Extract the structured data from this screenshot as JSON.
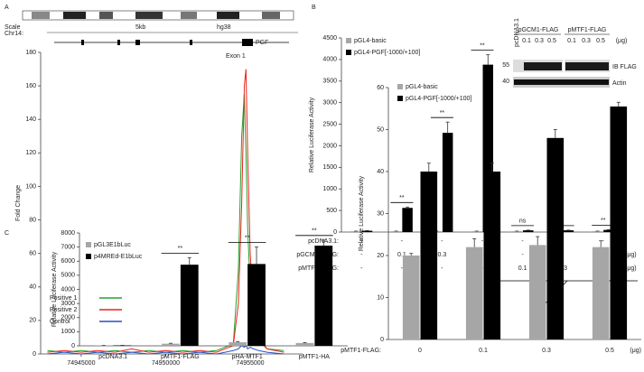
{
  "chart_data": [
    {
      "type": "line",
      "panel": "A",
      "ylabel": "Fold Change",
      "browser": {
        "scale": "Scale",
        "chrom": "Chr14:",
        "size": "5kb",
        "assembly": "hg38"
      },
      "gene": "PGF",
      "annotation": "Exon 1",
      "x": [
        74943000,
        74944000,
        74945000,
        74946000,
        74947000,
        74948000,
        74949000,
        74950000,
        74951000,
        74952000,
        74953000,
        74954000,
        74954300,
        74954500,
        74954650,
        74954750,
        74954850,
        74955000,
        74955200,
        74955500,
        74956000,
        74957000
      ],
      "series": [
        {
          "name": "Positive 1",
          "color": "#2ca02c",
          "values": [
            2,
            1,
            2,
            1,
            2,
            1,
            2,
            1,
            2,
            1,
            2,
            6,
            50,
            130,
            155,
            120,
            75,
            40,
            20,
            10,
            3,
            2
          ]
        },
        {
          "name": "Positive 2",
          "color": "#e8251c",
          "values": [
            1,
            2,
            1,
            2,
            1,
            3,
            1,
            2,
            1,
            2,
            1,
            5,
            30,
            90,
            160,
            170,
            120,
            60,
            25,
            8,
            3,
            1
          ]
        },
        {
          "name": "Control",
          "color": "#2a4fc4",
          "values": [
            0,
            1,
            0,
            1,
            0,
            1,
            0,
            1,
            0,
            1,
            0,
            2,
            3,
            5,
            4,
            5,
            3,
            4,
            3,
            2,
            1,
            0
          ]
        }
      ],
      "xlim": [
        74942600,
        74958100
      ],
      "xticks": [
        74945000,
        74950000,
        74955000
      ],
      "ylim": [
        0,
        180
      ],
      "yticks": [
        0,
        20,
        40,
        60,
        80,
        100,
        120,
        140,
        160,
        180
      ]
    },
    {
      "type": "bar",
      "panel": "B",
      "ylabel": "Relative Luciferase Activity",
      "series": [
        {
          "name": "pGL4-basic",
          "color": "#a6a6a6",
          "values": [
            20,
            20,
            20,
            20,
            20,
            20,
            20
          ],
          "errors": [
            2,
            2,
            2,
            2,
            2,
            2,
            2
          ]
        },
        {
          "name": "pGL4-PGF[-1000/+100]",
          "color": "#000000",
          "values": [
            30,
            560,
            2300,
            3880,
            40,
            40,
            50
          ],
          "errors": [
            5,
            20,
            250,
            230,
            5,
            5,
            5
          ]
        }
      ],
      "sig_labels": [
        null,
        "**",
        "**",
        "**",
        "ns",
        "*",
        "**"
      ],
      "rows": [
        {
          "label": "pcDNA3.1:",
          "values": [
            "+",
            "-",
            "-",
            "-",
            "-",
            "-",
            "-"
          ]
        },
        {
          "label": "pGCM1-FLAG:",
          "values": [
            "-",
            "0.1",
            "0.3",
            "0.5",
            "-",
            "-",
            "-"
          ],
          "unit": "(μg)"
        },
        {
          "label": "pMTF1-FLAG:",
          "values": [
            "-",
            "-",
            "-",
            "-",
            "0.1",
            "0.3",
            "0.5"
          ],
          "unit": "(μg)"
        }
      ],
      "inset": {
        "control": "pcDNA3.1",
        "groups": [
          "pGCM1-FLAG",
          "pMTF1-FLAG"
        ],
        "doses": [
          "0.1",
          "0.3",
          "0.5",
          "0.1",
          "0.3",
          "0.5"
        ],
        "unit": "(μg)",
        "markers": [
          "55",
          "40"
        ],
        "bands": [
          "IB FLAG",
          "Actin"
        ]
      },
      "ylim": [
        0,
        4500
      ],
      "yticks": [
        0,
        500,
        1000,
        1500,
        2000,
        2500,
        3000,
        3500,
        4000,
        4500
      ]
    },
    {
      "type": "bar",
      "ylabel": "Relative Luciferase Activity",
      "xlabel": "pMTF1-FLAG:",
      "unit": "(μg)",
      "categories": [
        "0",
        "0.1",
        "0.3",
        "0.5"
      ],
      "series": [
        {
          "name": "pGL4-basic",
          "color": "#a6a6a6",
          "values": [
            20,
            22,
            22.5,
            22
          ],
          "errors": [
            0.5,
            2,
            2,
            1.5
          ]
        },
        {
          "name": "pGL4-PGF[-1000/+100]",
          "color": "#000000",
          "values": [
            40,
            40,
            48,
            55.5
          ],
          "errors": [
            2,
            2,
            2,
            1
          ]
        }
      ],
      "ylim": [
        0,
        60
      ],
      "yticks": [
        0,
        10,
        20,
        30,
        40,
        50,
        60
      ]
    },
    {
      "type": "bar",
      "panel": "C",
      "ylabel": "Relative Luciferase Activity",
      "categories": [
        "pcDNA3.1",
        "pMTF1-FLAG",
        "pHA-MTF1",
        "pMTF1-HA"
      ],
      "series": [
        {
          "name": "pGL3E1bLuc",
          "color": "#a6a6a6",
          "values": [
            20,
            150,
            250,
            200
          ],
          "errors": [
            5,
            30,
            40,
            30
          ]
        },
        {
          "name": "p4MREd-E1bLuc",
          "color": "#000000",
          "values": [
            30,
            5750,
            5800,
            7100
          ],
          "errors": [
            5,
            500,
            1200,
            400
          ]
        }
      ],
      "sig_labels": [
        null,
        "**",
        "**",
        "**"
      ],
      "ylim": [
        0,
        8000
      ],
      "yticks": [
        0,
        1000,
        2000,
        3000,
        4000,
        5000,
        6000,
        7000,
        8000
      ]
    }
  ]
}
